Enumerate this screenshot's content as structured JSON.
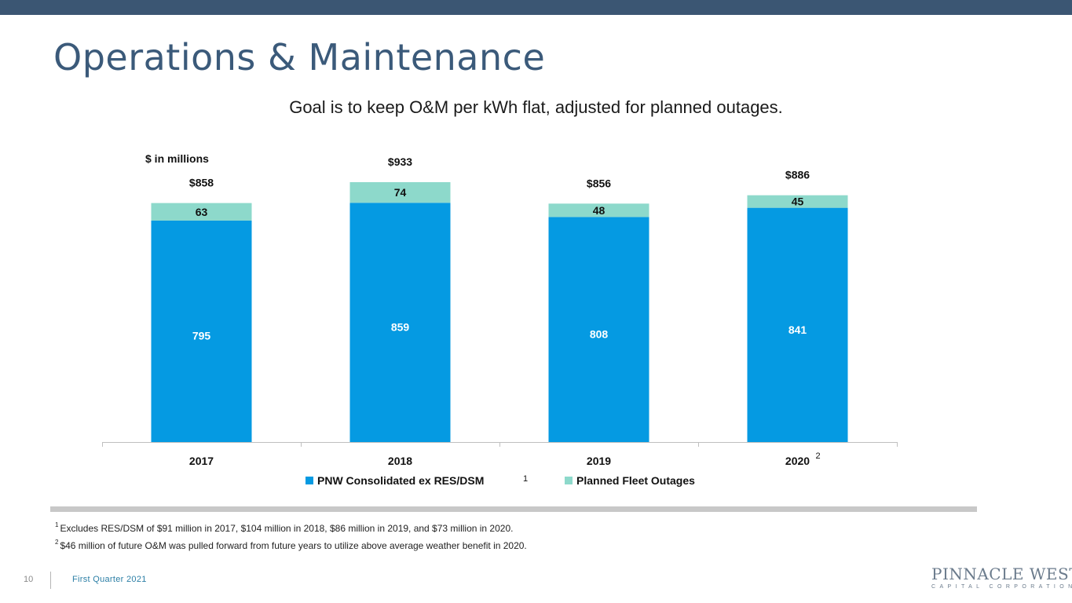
{
  "slide": {
    "title": "Operations & Maintenance",
    "subtitle": "Goal is to keep O&M per kWh flat, adjusted for planned outages.",
    "unit_label": "$ in millions",
    "page_number": "10",
    "footer_text": "First Quarter 2021",
    "logo_main": "PINNACLE WEST",
    "logo_sub": "CAPITAL CORPORATION",
    "footnotes": [
      {
        "marker": "1",
        "text": "Excludes RES/DSM  of $91 million in 2017, $104 million in 2018, $86 million in 2019, and $73 million in 2020."
      },
      {
        "marker": "2",
        "text": "$46 million of future O&M was pulled forward from future years to utilize above average weather benefit in 2020."
      }
    ]
  },
  "chart_data": {
    "type": "bar",
    "stacked": true,
    "categories": [
      "2017",
      "2018",
      "2019",
      "2020"
    ],
    "category_superscripts": [
      "",
      "",
      "",
      "2"
    ],
    "series": [
      {
        "name": "PNW Consolidated ex RES/DSM",
        "values": [
          795,
          859,
          808,
          841
        ],
        "color": "#059ae2",
        "legend_superscript": "1"
      },
      {
        "name": "Planned Fleet Outages",
        "values": [
          63,
          74,
          48,
          45
        ],
        "color": "#8dd9cb",
        "legend_superscript": ""
      }
    ],
    "totals": [
      "$858",
      "$933",
      "$856",
      "$886"
    ],
    "ylim": [
      0,
      933
    ],
    "grid": false,
    "legend": "bottom",
    "colors": {
      "primary": "#059ae2",
      "secondary": "#8dd9cb",
      "title": "#3b5a7a",
      "top_bar": "#3b5673"
    }
  }
}
